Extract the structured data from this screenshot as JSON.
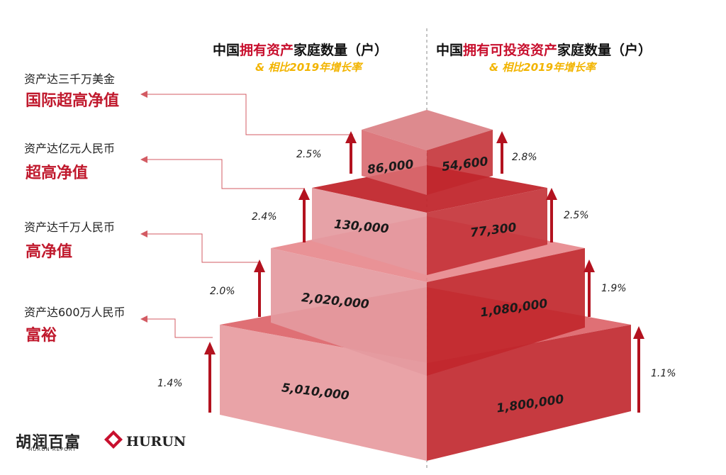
{
  "header": {
    "left": {
      "pre": "中国",
      "highlight": "拥有资产",
      "post": "家庭数量（户）"
    },
    "right": {
      "pre": "中国",
      "highlight": "拥有可投资资产",
      "post": "家庭数量（户）"
    },
    "subtitle_left": "& 相比2019年增长率",
    "subtitle_right": "& 相比2019年增长率"
  },
  "tiers": [
    {
      "desc": "资产达三千万美金",
      "name": "国际超高净值",
      "left_value": "86,000",
      "left_growth": "2.5%",
      "right_value": "54,600",
      "right_growth": "2.8%"
    },
    {
      "desc": "资产达亿元人民币",
      "name": "超高净值",
      "left_value": "130,000",
      "left_growth": "2.4%",
      "right_value": "77,300",
      "right_growth": "2.5%"
    },
    {
      "desc": "资产达千万人民币",
      "name": "高净值",
      "left_value": "2,020,000",
      "left_growth": "2.0%",
      "right_value": "1,080,000",
      "right_growth": "1.9%"
    },
    {
      "desc": "资产达600万人民币",
      "name": "富裕",
      "left_value": "5,010,000",
      "left_growth": "1.4%",
      "right_value": "1,800,000",
      "right_growth": "1.1%"
    }
  ],
  "logo": {
    "cn": "胡润百富",
    "cn_sub": "HURUN REPORT",
    "en": "HURUN"
  },
  "colors": {
    "accent": "#c0192d",
    "subtitle": "#f2b400",
    "light": "#e9a3a7",
    "mid": "#d9575d",
    "dark": "#c1272d",
    "arrow": "#b3121f"
  }
}
